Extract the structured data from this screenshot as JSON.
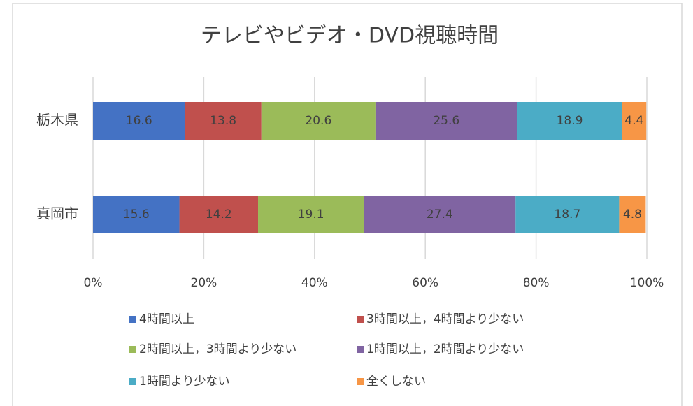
{
  "chart_data": {
    "type": "stacked_bar_horizontal",
    "title": "テレビやビデオ・DVD視聴時間",
    "categories": [
      "栃木県",
      "真岡市"
    ],
    "series": [
      {
        "name": "4時間以上",
        "color": "#4472c4",
        "values": [
          16.6,
          15.6
        ]
      },
      {
        "name": "3時間以上，4時間より少ない",
        "color": "#c0504d",
        "values": [
          13.8,
          14.2
        ]
      },
      {
        "name": "2時間以上，3時間より少ない",
        "color": "#9bbb59",
        "values": [
          20.6,
          19.1
        ]
      },
      {
        "name": "1時間以上，2時間より少ない",
        "color": "#8064a2",
        "values": [
          25.6,
          27.4
        ]
      },
      {
        "name": "1時間より少ない",
        "color": "#4bacc6",
        "values": [
          18.9,
          18.7
        ]
      },
      {
        "name": "全くしない",
        "color": "#f79646",
        "values": [
          4.4,
          4.8
        ]
      }
    ],
    "xlim": [
      0,
      100
    ],
    "xticks": [
      {
        "value": 0,
        "label": "0%"
      },
      {
        "value": 20,
        "label": "20%"
      },
      {
        "value": 40,
        "label": "40%"
      },
      {
        "value": 60,
        "label": "60%"
      },
      {
        "value": 80,
        "label": "80%"
      },
      {
        "value": 100,
        "label": "100%"
      }
    ],
    "grid": true
  }
}
